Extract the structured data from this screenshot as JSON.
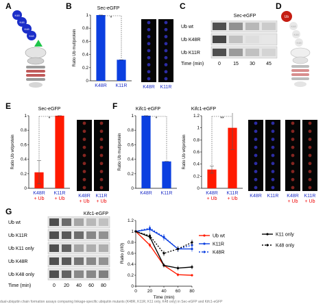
{
  "panels": {
    "A": {
      "letter": "A",
      "chain": [
        "K48",
        "K48",
        "K48",
        "K48"
      ]
    },
    "B": {
      "letter": "B",
      "title": "Sec-eGFP",
      "ylabel": "Ratio Ub mut/protein",
      "img_labels": [
        "K48R",
        "K11R"
      ]
    },
    "C": {
      "letter": "C",
      "title": "Sec-eGFP",
      "rows": [
        "Ub wt",
        "Ub K48R",
        "Ub K11R"
      ],
      "time_label": "Time (min)",
      "times": [
        "0",
        "15",
        "30",
        "45"
      ]
    },
    "D": {
      "letter": "D",
      "chain": [
        "Ub",
        "K48",
        "K48",
        "K48"
      ]
    },
    "E": {
      "letter": "E",
      "title": "Sec-eGFP",
      "ylabel": "Ratio Ub wt/protein",
      "img_labels": [
        "K48R",
        "K11R"
      ],
      "img_sublabels": [
        "+ Ub",
        "+ Ub"
      ]
    },
    "F": {
      "letter": "F",
      "title1": "Kifc1-eGFP",
      "title2": "Kifc1-eGFP",
      "ylabel1": "Ratio Ub mut/protein",
      "ylabel2": "Ratio Ub wt/protein",
      "img_labels1": [
        "K48R",
        "K11R"
      ],
      "img_labels2": [
        "K48R",
        "K11R"
      ],
      "img_sublabels2": [
        "+ Ub",
        "+ Ub"
      ]
    },
    "G": {
      "letter": "G",
      "title": "Kifc1-eGFP",
      "rows": [
        "Ub wt",
        "Ub K11R",
        "Ub K11 only",
        "Ub K48R",
        "Ub K48 only"
      ],
      "time_label": "Time (min)",
      "times": [
        "0",
        "20",
        "40",
        "60",
        "80"
      ]
    }
  },
  "caption": "dual-ubiquitin chain formation assays comparing linkage-specific ubiquitin mutants (K48R, K11R, K11 only, K48 only) in Sec-eGFP and Kifc1-eGFP",
  "chart_data": [
    {
      "id": "B",
      "type": "bar",
      "categories": [
        "K48R",
        "K11R"
      ],
      "category_colors": [
        "#0b3fe0",
        "#0b3fe0"
      ],
      "values": [
        1.0,
        0.32
      ],
      "errors": [
        0.01,
        0.01
      ],
      "ylim": [
        0,
        1
      ],
      "yticks": [
        "0",
        "0.2",
        "0.4",
        "0.6",
        "0.8",
        "1"
      ],
      "significance": "*",
      "ylabel": "Ratio Ub mut/protein"
    },
    {
      "id": "E",
      "type": "bar",
      "categories": [
        "K48R",
        "K11R"
      ],
      "category_sublabels": [
        "+ Ub",
        "+ Ub"
      ],
      "category_colors": [
        "#ff1a00",
        "#ff1a00"
      ],
      "values": [
        0.22,
        1.0
      ],
      "errors": [
        0.16,
        0.005
      ],
      "ylim": [
        0,
        1
      ],
      "yticks": [
        "0",
        "0.2",
        "0.4",
        "0.6",
        "0.8",
        "1"
      ],
      "significance": "*",
      "ylabel": "Ratio Ub wt/protein"
    },
    {
      "id": "F1",
      "type": "bar",
      "categories": [
        "K48R",
        "K11R"
      ],
      "category_colors": [
        "#0b3fe0",
        "#0b3fe0"
      ],
      "values": [
        1.0,
        0.37
      ],
      "errors": [
        0.01,
        0.01
      ],
      "ylim": [
        0,
        1
      ],
      "yticks": [
        "0",
        "0.2",
        "0.4",
        "0.6",
        "0.8",
        "1"
      ],
      "significance": "*",
      "ylabel": "Ratio Ub mut/protein"
    },
    {
      "id": "F2",
      "type": "bar",
      "categories": [
        "K48R",
        "K11R"
      ],
      "category_sublabels": [
        "+ Ub",
        "+ Ub"
      ],
      "category_colors": [
        "#ff1a00",
        "#ff1a00"
      ],
      "values": [
        0.31,
        1.0
      ],
      "errors": [
        0.06,
        0.36
      ],
      "ylim": [
        0,
        1.2
      ],
      "yticks": [
        "0",
        "0.2",
        "0.4",
        "0.6",
        "0.8",
        "1",
        "1.2"
      ],
      "significance": "**",
      "ylabel": "Ratio Ub wt/protein"
    },
    {
      "id": "G",
      "type": "line",
      "x": [
        0,
        20,
        40,
        60,
        80
      ],
      "xlim": [
        0,
        80
      ],
      "xticks": [
        "0",
        "20",
        "40",
        "60",
        "80"
      ],
      "ylim": [
        0,
        1.2
      ],
      "yticks": [
        "0",
        "0.2",
        "0.4",
        "0.6",
        "0.8",
        "1",
        "1.2"
      ],
      "xlabel": "Time (min)",
      "ylabel": "Ratio (I/I0)",
      "legend": "right",
      "series": [
        {
          "name": "Ub wt",
          "color": "#ff1a00",
          "dash": "",
          "values": [
            1.0,
            0.75,
            0.38,
            0.21,
            0.2
          ],
          "errors": [
            0,
            0.04,
            0.03,
            0.03,
            0.02
          ]
        },
        {
          "name": "K11R",
          "color": "#0b3fe0",
          "dash": "",
          "values": [
            1.0,
            1.04,
            0.89,
            0.68,
            0.68
          ],
          "errors": [
            0,
            0.06,
            0.06,
            0.05,
            0.05
          ]
        },
        {
          "name": "K48R",
          "color": "#0b3fe0",
          "dash": "2,2",
          "values": [
            1.0,
            1.06,
            0.9,
            0.68,
            0.75
          ],
          "errors": [
            0,
            0.05,
            0.05,
            0.05,
            0.05
          ]
        },
        {
          "name": "K11 only",
          "color": "#000000",
          "dash": "",
          "values": [
            1.0,
            0.9,
            0.38,
            0.33,
            0.35
          ],
          "errors": [
            0,
            0.05,
            0.04,
            0.04,
            0.04
          ]
        },
        {
          "name": "K48 only",
          "color": "#000000",
          "dash": "2,2",
          "values": [
            1.0,
            0.92,
            0.6,
            0.68,
            0.8
          ],
          "errors": [
            0,
            0.05,
            0.05,
            0.05,
            0.05
          ]
        }
      ]
    }
  ]
}
